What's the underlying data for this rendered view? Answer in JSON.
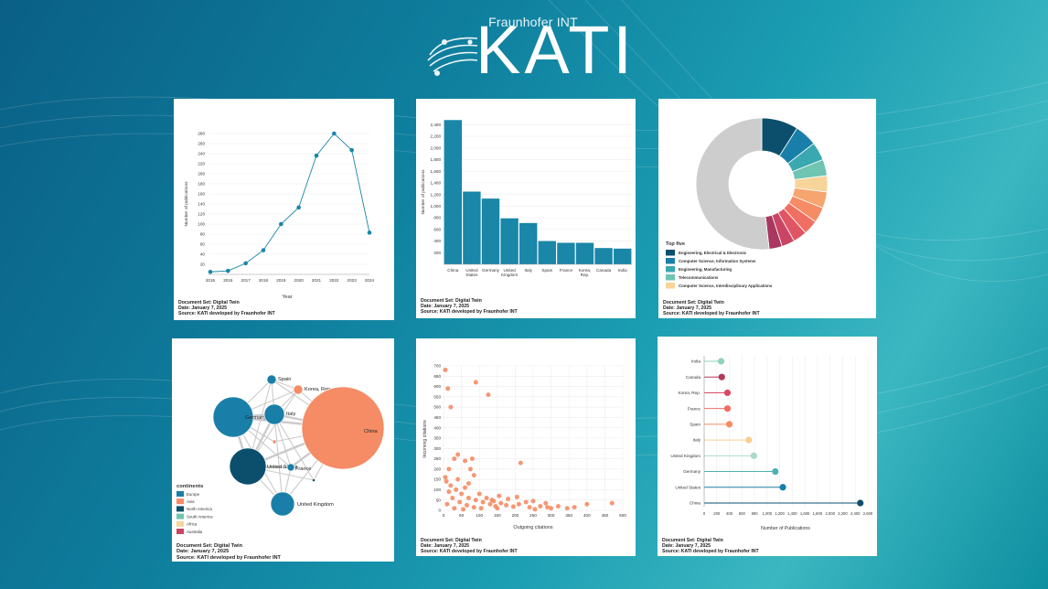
{
  "header": {
    "org": "Fraunhofer INT",
    "brand": "KATI"
  },
  "colors": {
    "teal": "#1a86a8",
    "orange": "#f58c65",
    "grey": "#cfcfcf"
  },
  "chart_data": [
    {
      "type": "line",
      "x": [
        2015,
        2016,
        2017,
        2018,
        2019,
        2020,
        2021,
        2022,
        2023,
        2024
      ],
      "values": [
        5,
        7,
        22,
        48,
        100,
        133,
        236,
        280,
        247,
        83
      ],
      "ylabel": "Number of publications",
      "xlabel": "Year",
      "ylim": [
        0,
        280
      ],
      "yticks": [
        20,
        40,
        60,
        80,
        100,
        120,
        140,
        160,
        180,
        200,
        220,
        240,
        260,
        280
      ],
      "footer": [
        "Document Set: Digital Twin",
        "Date: January 7, 2025",
        "Source: KATI developed by Fraunhofer INT"
      ]
    },
    {
      "type": "bar",
      "categories": [
        "China",
        "United States",
        "Germany",
        "United Kingdom",
        "Italy",
        "Spain",
        "France",
        "Korea, Rep.",
        "Canada",
        "India"
      ],
      "values": [
        2480,
        1250,
        1130,
        790,
        710,
        400,
        370,
        370,
        280,
        270
      ],
      "ylabel": "Number of publications",
      "ylim": [
        0,
        2500
      ],
      "yticks": [
        200,
        400,
        600,
        800,
        1000,
        1200,
        1400,
        1600,
        1800,
        2000,
        2200,
        2400
      ],
      "ytick_labels": [
        "200",
        "400",
        "600",
        "800",
        "1,000",
        "1,200",
        "1,400",
        "1,600",
        "1,800",
        "2,000",
        "2,200",
        "2,400"
      ],
      "footer": [
        "Document Set: Digital Twin",
        "Date: January 7, 2025",
        "Source: KATI developed by Fraunhofer INT"
      ]
    },
    {
      "type": "pie",
      "values": [
        9,
        5.5,
        4.5,
        4,
        4,
        4,
        3.8,
        3.6,
        3.4,
        3.2,
        3.2,
        51.8
      ],
      "slice_colors": [
        "#0b4f6c",
        "#1a7fa8",
        "#3aa8b0",
        "#6fc4b2",
        "#f7d49a",
        "#f6a56e",
        "#f58c65",
        "#ef7062",
        "#e05563",
        "#c84563",
        "#a83860",
        "#cdcdcd"
      ],
      "legend": {
        "title": "Top five",
        "entries": [
          {
            "label": "Engineering, Electrical & Electronic",
            "color": "#0b4f6c"
          },
          {
            "label": "Computer Science, Information Systems",
            "color": "#1a7fa8"
          },
          {
            "label": "Engineering, Manufacturing",
            "color": "#3aa8b0"
          },
          {
            "label": "Telecommunications",
            "color": "#6fc4b2"
          },
          {
            "label": "Computer Science, Interdisciplinary Applications",
            "color": "#f7d49a"
          }
        ]
      },
      "footer": [
        "Document Set: Digital Twin",
        "Date: January 7, 2025",
        "Source: KATI developed by Fraunhofer INT"
      ]
    },
    {
      "type": "network",
      "nodes": [
        {
          "label": "Spain",
          "color": "#1a7fa8"
        },
        {
          "label": "Korea, Rep.",
          "color": "#f58c65"
        },
        {
          "label": "Germany",
          "color": "#1a7fa8"
        },
        {
          "label": "Italy",
          "color": "#1a7fa8"
        },
        {
          "label": "China",
          "color": "#f58c65"
        },
        {
          "label": "United States",
          "color": "#0b4f6c"
        },
        {
          "label": "France",
          "color": "#1a7fa8"
        },
        {
          "label": "United Kingdom",
          "color": "#1a7fa8"
        },
        {
          "label": "",
          "color": "#0b4f6c"
        },
        {
          "label": "",
          "color": "#f58c65"
        }
      ],
      "legend": {
        "title": "continents",
        "entries": [
          {
            "label": "Europe",
            "color": "#1a7fa8"
          },
          {
            "label": "Asia",
            "color": "#f58c65"
          },
          {
            "label": "North America",
            "color": "#0b4f6c"
          },
          {
            "label": "South America",
            "color": "#6fc4b2"
          },
          {
            "label": "Africa",
            "color": "#f7d49a"
          },
          {
            "label": "Australia",
            "color": "#c84563"
          }
        ]
      },
      "footer": [
        "Document Set: Digital Twin",
        "Date: January 7, 2025",
        "Source: KATI developed by Fraunhofer INT"
      ]
    },
    {
      "type": "scatter",
      "xlabel": "Outgoing citations",
      "ylabel": "Incoming citations",
      "xlim": [
        0,
        500
      ],
      "ylim": [
        0,
        700
      ],
      "xticks": [
        0,
        50,
        100,
        150,
        200,
        250,
        300,
        350,
        400,
        450,
        500
      ],
      "yticks": [
        0,
        50,
        100,
        150,
        200,
        250,
        300,
        350,
        400,
        450,
        500,
        550,
        600,
        650,
        700
      ],
      "points": [
        [
          5,
          680
        ],
        [
          12,
          590
        ],
        [
          20,
          500
        ],
        [
          90,
          620
        ],
        [
          125,
          560
        ],
        [
          40,
          270
        ],
        [
          30,
          250
        ],
        [
          60,
          240
        ],
        [
          80,
          250
        ],
        [
          15,
          200
        ],
        [
          75,
          200
        ],
        [
          85,
          170
        ],
        [
          215,
          230
        ],
        [
          8,
          140
        ],
        [
          20,
          120
        ],
        [
          35,
          100
        ],
        [
          50,
          80
        ],
        [
          70,
          60
        ],
        [
          90,
          50
        ],
        [
          110,
          40
        ],
        [
          130,
          30
        ],
        [
          145,
          20
        ],
        [
          25,
          60
        ],
        [
          45,
          40
        ],
        [
          65,
          25
        ],
        [
          85,
          15
        ],
        [
          105,
          10
        ],
        [
          10,
          30
        ],
        [
          30,
          10
        ],
        [
          55,
          5
        ],
        [
          120,
          60
        ],
        [
          140,
          45
        ],
        [
          160,
          35
        ],
        [
          175,
          25
        ],
        [
          195,
          18
        ],
        [
          210,
          30
        ],
        [
          230,
          40
        ],
        [
          250,
          45
        ],
        [
          270,
          20
        ],
        [
          290,
          15
        ],
        [
          300,
          10
        ],
        [
          320,
          20
        ],
        [
          345,
          10
        ],
        [
          365,
          15
        ],
        [
          400,
          30
        ],
        [
          470,
          35
        ],
        [
          15,
          90
        ],
        [
          60,
          110
        ],
        [
          100,
          80
        ],
        [
          135,
          50
        ],
        [
          155,
          70
        ],
        [
          180,
          55
        ],
        [
          205,
          65
        ],
        [
          255,
          5
        ],
        [
          285,
          35
        ],
        [
          5,
          160
        ],
        [
          150,
          10
        ],
        [
          240,
          15
        ],
        [
          70,
          130
        ],
        [
          40,
          150
        ]
      ],
      "footer": [
        "Document Set: Digital Twin",
        "Date: January 7, 2025",
        "Source: KATI developed by Fraunhofer INT"
      ]
    },
    {
      "type": "lollipop",
      "categories": [
        "India",
        "Canada",
        "Korea, Rep.",
        "France",
        "Spain",
        "Italy",
        "United Kingdom",
        "Germany",
        "United States",
        "China"
      ],
      "values": [
        270,
        280,
        370,
        370,
        400,
        710,
        790,
        1130,
        1250,
        2480
      ],
      "dot_colors": [
        "#8fd3b7",
        "#b23a5a",
        "#d94a64",
        "#ef6e63",
        "#f58c65",
        "#f7cf8f",
        "#a9dcc4",
        "#4fb0b0",
        "#1a7fa8",
        "#0b4f6c"
      ],
      "xlabel": "Number of Publications",
      "xlim": [
        0,
        2600
      ],
      "xticks": [
        0,
        200,
        400,
        600,
        800,
        1000,
        1200,
        1400,
        1600,
        1800,
        2000,
        2200,
        2400,
        2600
      ],
      "xtick_labels": [
        "0",
        "200",
        "400",
        "600",
        "800",
        "1,000",
        "1,200",
        "1,400",
        "1,600",
        "1,800",
        "2,000",
        "2,200",
        "2,400",
        "2,600"
      ],
      "footer": [
        "Document Set: Digital Twin",
        "Date: January 7, 2025",
        "Source: KATI developed by Fraunhofer INT"
      ]
    }
  ]
}
